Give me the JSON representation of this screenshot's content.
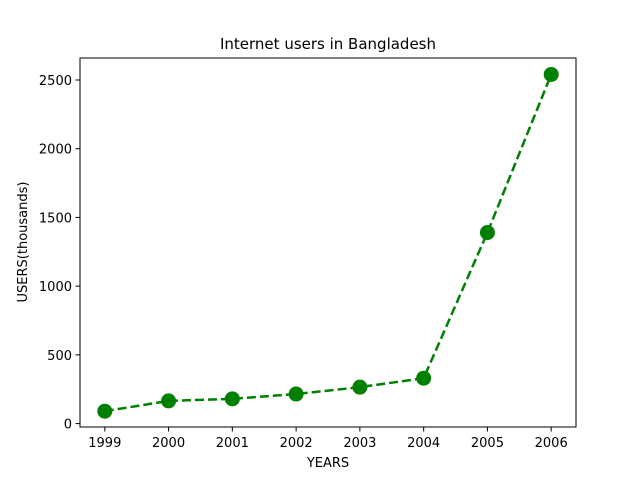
{
  "chart_data": {
    "type": "line",
    "title": "Internet users in Bangladesh",
    "xlabel": "YEARS",
    "ylabel": "USERS(thousands)",
    "x": [
      "1999",
      "2000",
      "2001",
      "2002",
      "2003",
      "2004",
      "2005",
      "2006"
    ],
    "series": [
      {
        "values": [
          90,
          165,
          180,
          215,
          265,
          330,
          1390,
          2540
        ],
        "color": "#008000",
        "line_style": "dashed",
        "marker": "circle"
      }
    ],
    "ylim": [
      -25,
      2660
    ],
    "yticks": [
      0,
      500,
      1000,
      1500,
      2000,
      2500
    ],
    "grid": false,
    "legend": "none"
  }
}
